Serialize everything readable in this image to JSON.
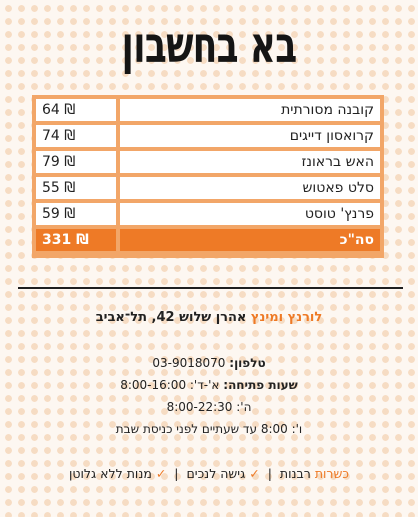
{
  "title": "בא בחשבון",
  "bill": {
    "items": [
      {
        "name": "קובנה מסורתית",
        "price": "64 ₪"
      },
      {
        "name": "קרואסון דייגים",
        "price": "74 ₪"
      },
      {
        "name": "האש בראונז",
        "price": "79 ₪"
      },
      {
        "name": "סלט פאטוש",
        "price": "55 ₪"
      },
      {
        "name": "פרנץ' טוסט",
        "price": "59 ₪"
      }
    ],
    "total": {
      "name": "סה\"כ",
      "price": "331 ₪"
    }
  },
  "address": {
    "brand": "לורנץ ומינץ",
    "street": "אהרן שלוש 42, תל־אביב"
  },
  "contact": {
    "phone_label": "טלפון:",
    "phone": "03-9018070",
    "hours_label": "שעות פתיחה:",
    "hours_1": "א'-ד': 8:00-16:00",
    "hours_2": "ה': 8:00-22:30",
    "hours_3": "ו': 8:00 עד שעתיים לפני כניסת שבת"
  },
  "features": {
    "kashrut": "כשרות",
    "kashrut_value": "רבנות",
    "check": "✓",
    "accessibility": "גישה לנכים",
    "gluten_free": "מנות ללא גלוטן",
    "separator": "|"
  },
  "colors": {
    "accent": "#ee7a26",
    "table_border": "#f2a668"
  }
}
